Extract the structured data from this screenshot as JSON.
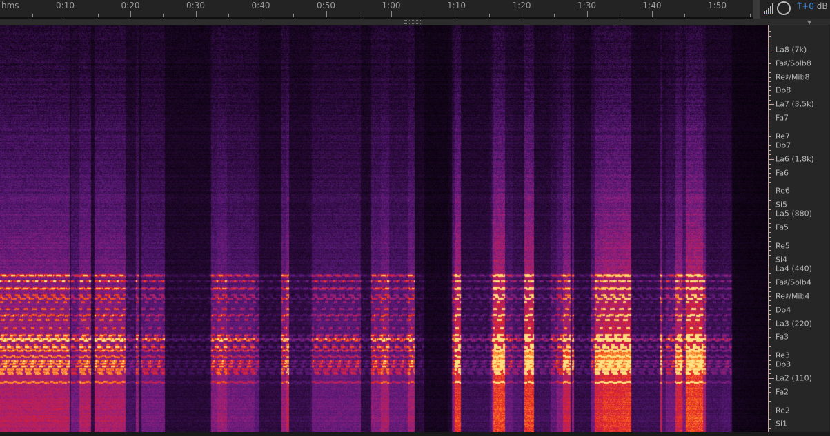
{
  "ruler": {
    "units": "hms",
    "labels": [
      "0:10",
      "0:20",
      "0:30",
      "0:40",
      "0:50",
      "1:00",
      "1:10",
      "1:20",
      "1:30",
      "1:40",
      "1:50"
    ]
  },
  "toolbar": {
    "level_value": "+0",
    "level_unit": "dB",
    "icons": [
      "signal-strength-icon",
      "headphones-icon",
      "microphone-icon"
    ]
  },
  "colormap": [
    "#000000",
    "#2a0a3a",
    "#5a1a7a",
    "#a0207a",
    "#e0202a",
    "#ff7a20",
    "#ffe080"
  ],
  "pitch_axis": {
    "labels": [
      "La8 (7k)",
      "Fa♯/Solb8",
      "Re♯/Mib8",
      "Do8",
      "La7 (3,5k)",
      "Fa7",
      "Re7",
      "Do7",
      "La6 (1,8k)",
      "Fa6",
      "Re6",
      "Si5",
      "La5 (880)",
      "Fa5",
      "Re5",
      "Si4",
      "La4 (440)",
      "Fa♯/Solb4",
      "Re♯/Mib4",
      "Do4",
      "La3 (220)",
      "Fa3",
      "Re3",
      "Do3",
      "La2 (110)",
      "Fa2",
      "Re2",
      "Si1"
    ]
  }
}
